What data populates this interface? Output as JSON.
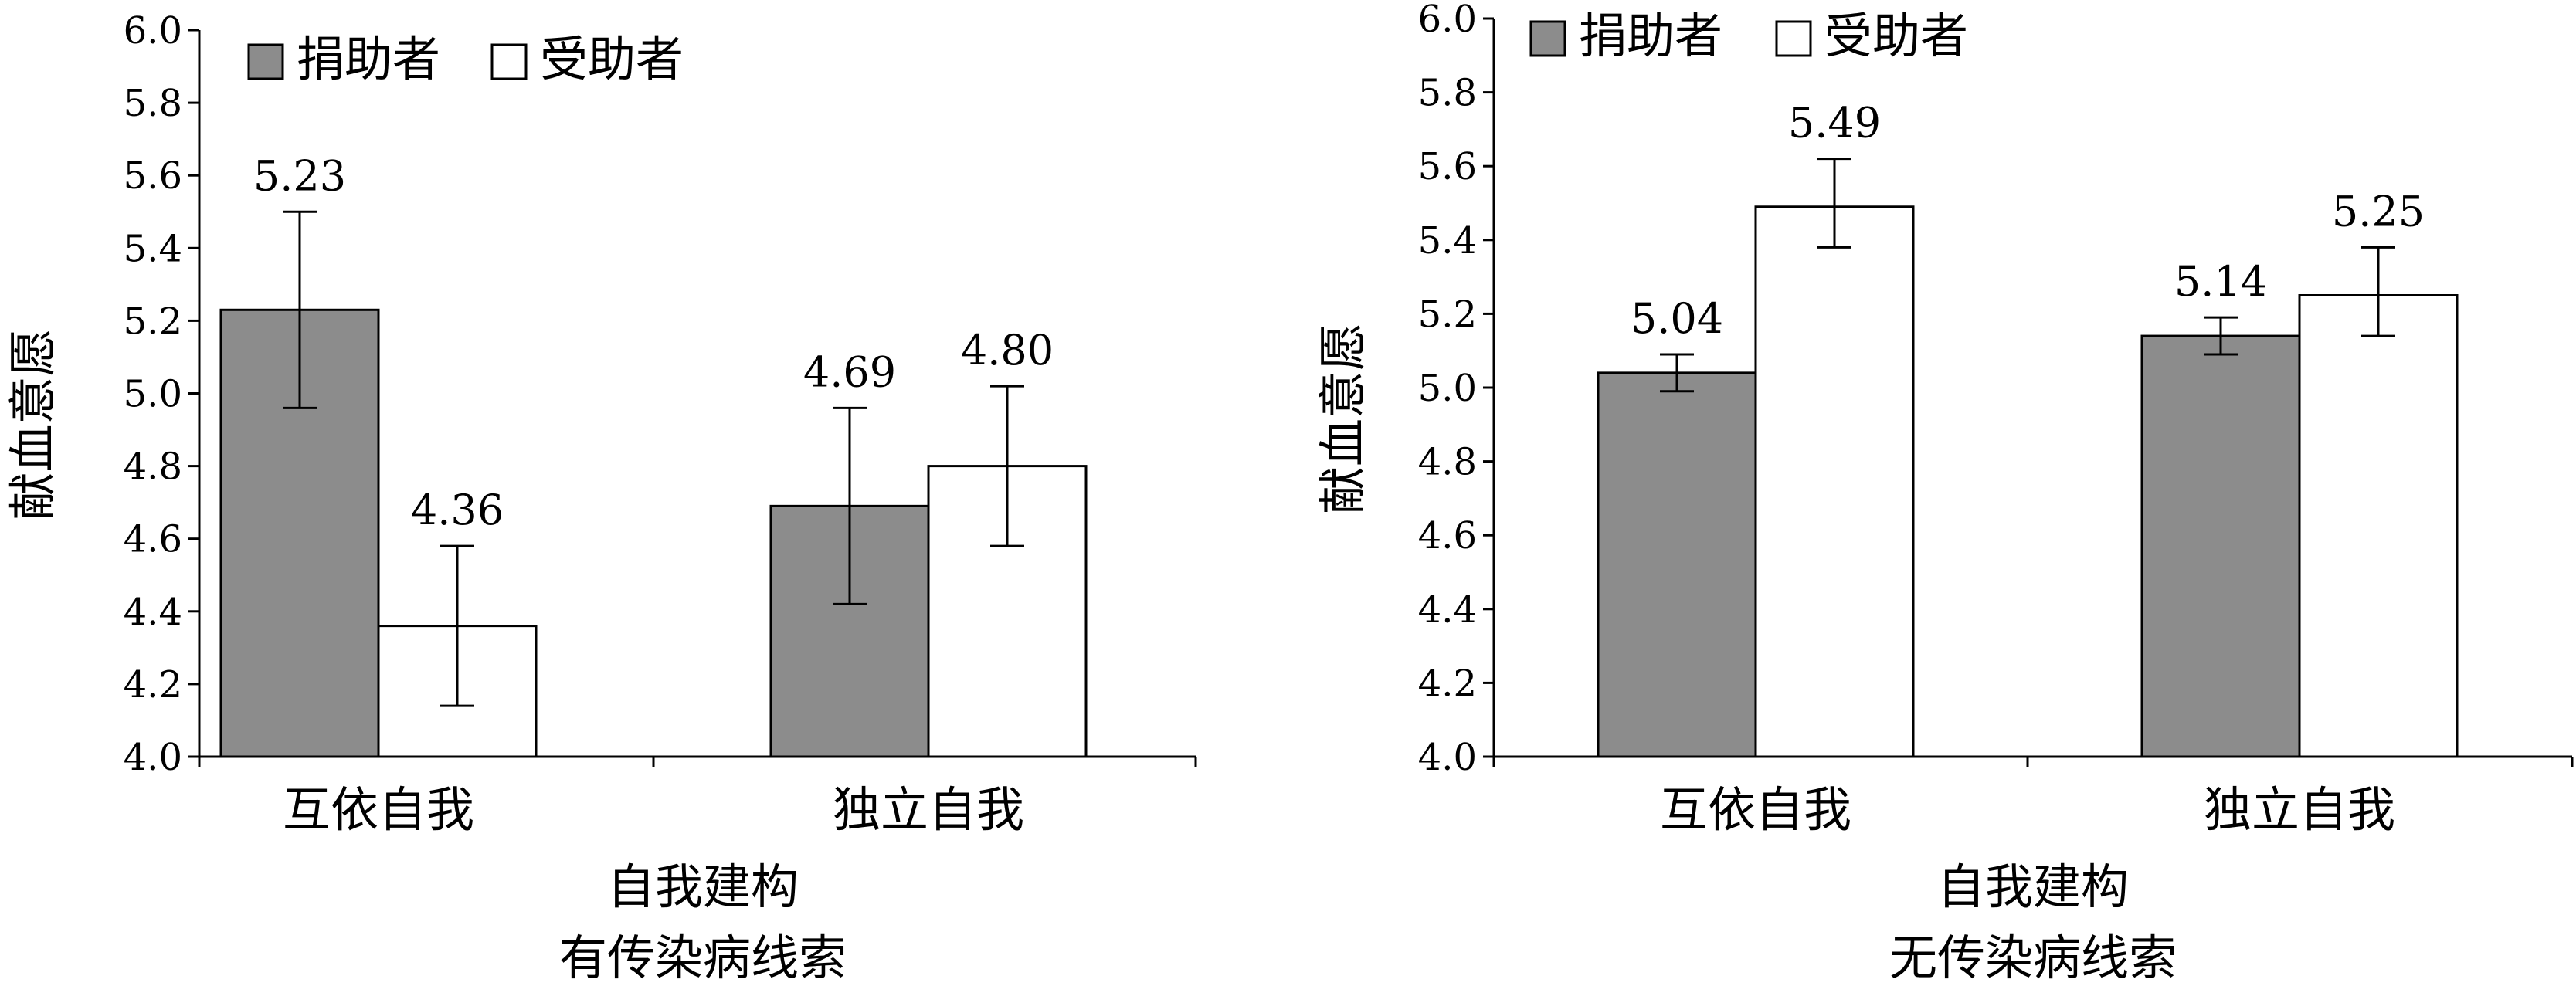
{
  "legend": {
    "position": "top-left",
    "entries": [
      {
        "name": "捐助者",
        "color": "#8c8c8c"
      },
      {
        "name": "受助者",
        "color": "#ffffff"
      }
    ]
  },
  "chart_data": [
    {
      "type": "bar",
      "title": "有传染病线索",
      "xlabel": "自我建构",
      "ylabel": "献血意愿",
      "ylim": [
        4.0,
        6.0
      ],
      "yticks": [
        "4.0",
        "4.2",
        "4.4",
        "4.6",
        "4.8",
        "5.0",
        "5.2",
        "5.4",
        "5.6",
        "5.8",
        "6.0"
      ],
      "categories": [
        "互依自我",
        "独立自我"
      ],
      "series": [
        {
          "name": "捐助者",
          "values": [
            5.23,
            4.69
          ],
          "labels": [
            "5.23",
            "4.69"
          ],
          "err": [
            [
              4.96,
              5.5
            ],
            [
              4.42,
              4.96
            ]
          ]
        },
        {
          "name": "受助者",
          "values": [
            4.36,
            4.8
          ],
          "labels": [
            "4.36",
            "4.80"
          ],
          "err": [
            [
              4.14,
              4.58
            ],
            [
              4.58,
              5.02
            ]
          ]
        }
      ]
    },
    {
      "type": "bar",
      "title": "无传染病线索",
      "xlabel": "自我建构",
      "ylabel": "献血意愿",
      "ylim": [
        4.0,
        6.0
      ],
      "yticks": [
        "4.0",
        "4.2",
        "4.4",
        "4.6",
        "4.8",
        "5.0",
        "5.2",
        "5.4",
        "5.6",
        "5.8",
        "6.0"
      ],
      "categories": [
        "互依自我",
        "独立自我"
      ],
      "series": [
        {
          "name": "捐助者",
          "values": [
            5.04,
            5.14
          ],
          "labels": [
            "5.04",
            "5.14"
          ],
          "err": [
            [
              4.99,
              5.09
            ],
            [
              5.09,
              5.19
            ]
          ]
        },
        {
          "name": "受助者",
          "values": [
            5.49,
            5.25
          ],
          "labels": [
            "5.49",
            "5.25"
          ],
          "err": [
            [
              5.38,
              5.62
            ],
            [
              5.14,
              5.38
            ]
          ]
        }
      ]
    }
  ]
}
